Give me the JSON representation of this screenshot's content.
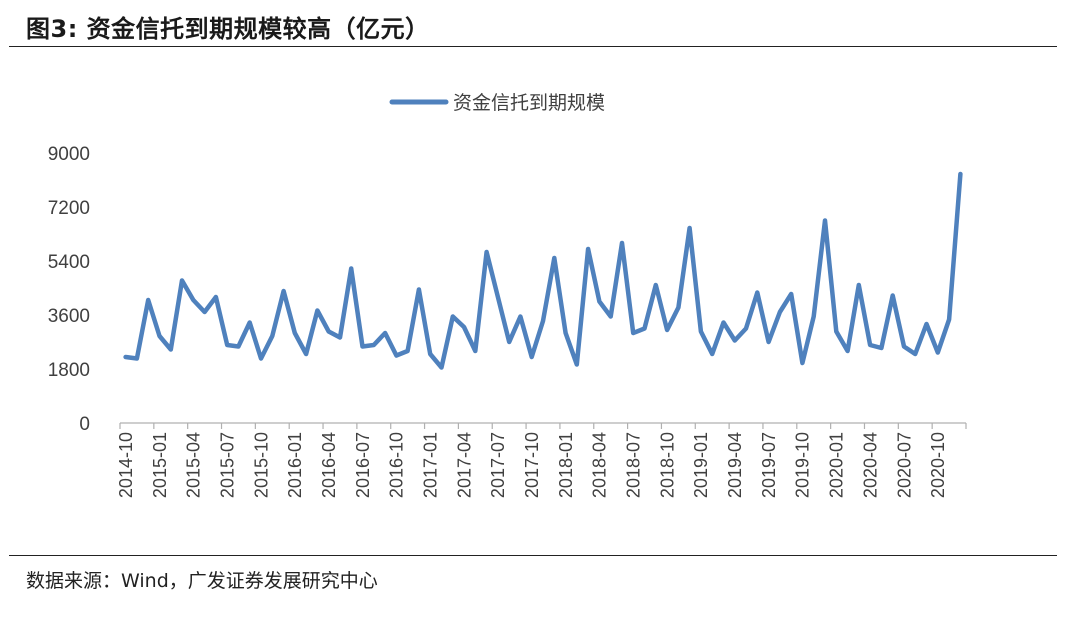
{
  "header": {
    "title": "图3: 资金信托到期规模较高（亿元）"
  },
  "footer": {
    "source": "数据来源：Wind，广发证券发展研究中心"
  },
  "chart_data": {
    "type": "line",
    "title": "",
    "xlabel": "",
    "ylabel": "",
    "ylim": [
      0,
      9000
    ],
    "yticks": [
      0,
      1800,
      3600,
      5400,
      7200,
      9000
    ],
    "grid": false,
    "legend_position": "top-center",
    "x": [
      "2014-10",
      "2014-11",
      "2014-12",
      "2015-01",
      "2015-02",
      "2015-03",
      "2015-04",
      "2015-05",
      "2015-06",
      "2015-07",
      "2015-08",
      "2015-09",
      "2015-10",
      "2015-11",
      "2015-12",
      "2016-01",
      "2016-02",
      "2016-03",
      "2016-04",
      "2016-05",
      "2016-06",
      "2016-07",
      "2016-08",
      "2016-09",
      "2016-10",
      "2016-11",
      "2016-12",
      "2017-01",
      "2017-02",
      "2017-03",
      "2017-04",
      "2017-05",
      "2017-06",
      "2017-07",
      "2017-08",
      "2017-09",
      "2017-10",
      "2017-11",
      "2017-12",
      "2018-01",
      "2018-02",
      "2018-03",
      "2018-04",
      "2018-05",
      "2018-06",
      "2018-07",
      "2018-08",
      "2018-09",
      "2018-10",
      "2018-11",
      "2018-12",
      "2019-01",
      "2019-02",
      "2019-03",
      "2019-04",
      "2019-05",
      "2019-06",
      "2019-07",
      "2019-08",
      "2019-09",
      "2019-10",
      "2019-11",
      "2019-12",
      "2020-01",
      "2020-02",
      "2020-03",
      "2020-04",
      "2020-05",
      "2020-06",
      "2020-07",
      "2020-08",
      "2020-09",
      "2020-10",
      "2020-11",
      "2020-12"
    ],
    "x_tick_labels": [
      "2014-10",
      "2015-01",
      "2015-04",
      "2015-07",
      "2015-10",
      "2016-01",
      "2016-04",
      "2016-07",
      "2016-10",
      "2017-01",
      "2017-04",
      "2017-07",
      "2017-10",
      "2018-01",
      "2018-04",
      "2018-07",
      "2018-10",
      "2019-01",
      "2019-04",
      "2019-07",
      "2019-10",
      "2020-01",
      "2020-04",
      "2020-07",
      "2020-10"
    ],
    "series": [
      {
        "name": "资金信托到期规模",
        "color": "#4f81bd",
        "values": [
          2200,
          2150,
          4100,
          2900,
          2450,
          4750,
          4100,
          3700,
          4200,
          2600,
          2550,
          3350,
          2150,
          2900,
          4400,
          3000,
          2300,
          3750,
          3050,
          2850,
          5150,
          2550,
          2600,
          3000,
          2250,
          2400,
          4450,
          2300,
          1850,
          3550,
          3200,
          2400,
          5700,
          4200,
          2700,
          3550,
          2200,
          3400,
          5500,
          3000,
          1950,
          5800,
          4050,
          3550,
          6000,
          3000,
          3150,
          4600,
          3100,
          3850,
          6500,
          3050,
          2300,
          3350,
          2750,
          3150,
          4350,
          2700,
          3700,
          4300,
          2000,
          3550,
          6750,
          3050,
          2400,
          4600,
          2600,
          2500,
          4250,
          2550,
          2300,
          3300,
          2350,
          3450,
          8300
        ]
      }
    ]
  }
}
